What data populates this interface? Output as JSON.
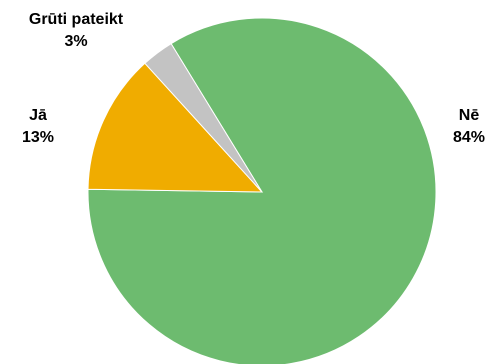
{
  "chart_data": {
    "type": "pie",
    "slices": [
      {
        "label": "Nē",
        "value_text": "84%",
        "value": 84,
        "color": "#6dbb6f"
      },
      {
        "label": "Jā",
        "value_text": "13%",
        "value": 13,
        "color": "#f0ac00"
      },
      {
        "label": "Grūti pateikt",
        "value_text": "3%",
        "value": 3,
        "color": "#c3c3c3"
      }
    ]
  }
}
